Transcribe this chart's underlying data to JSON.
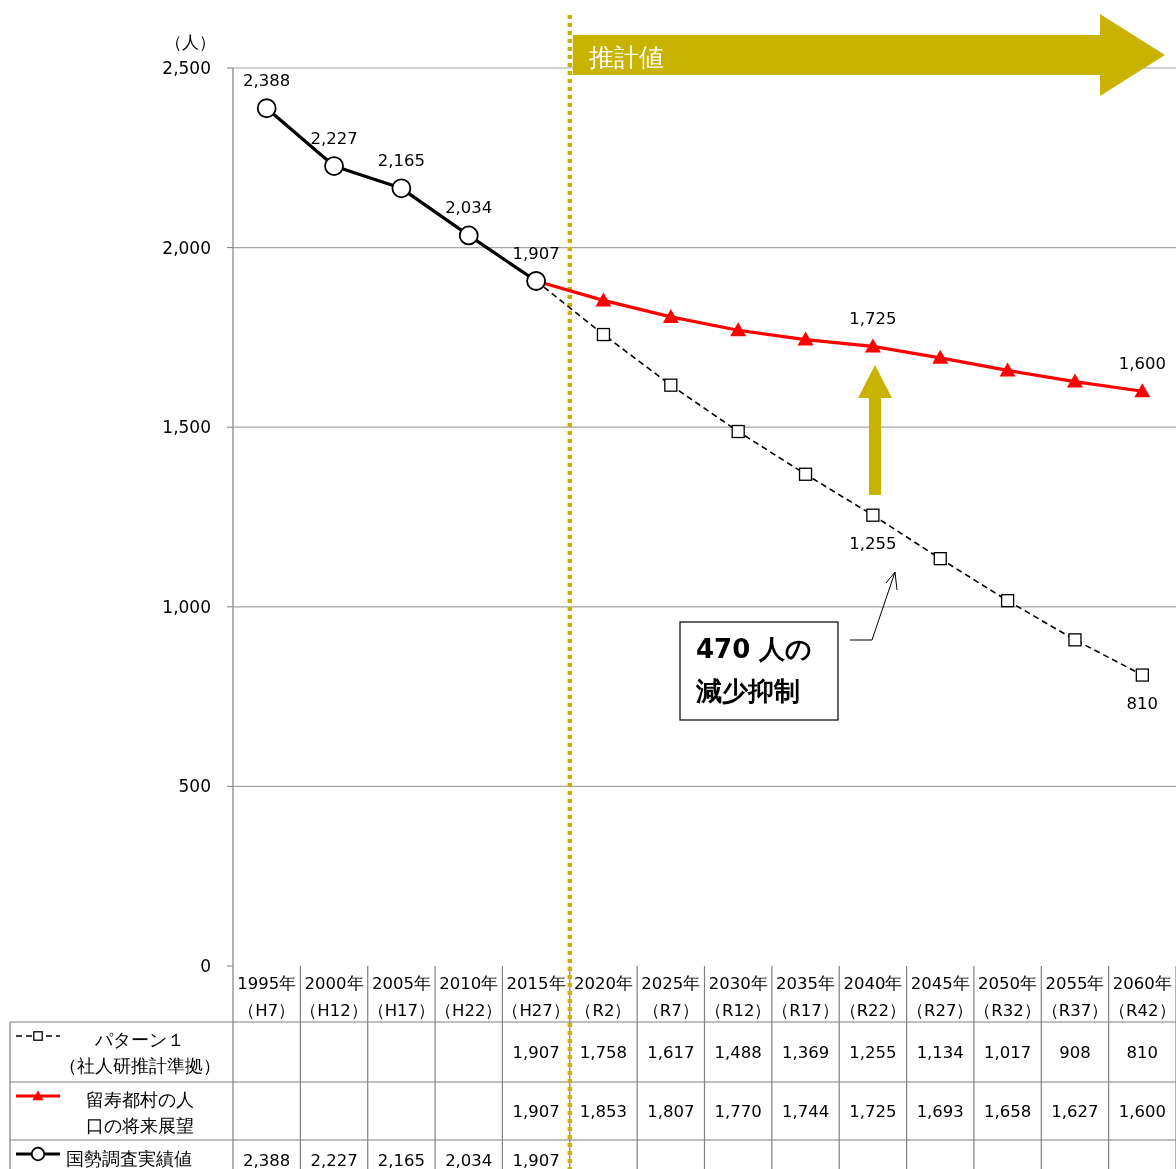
{
  "chart_data": {
    "type": "line",
    "ylabel": "（人）",
    "categories": [
      "1995年（H7）",
      "2000年（H12）",
      "2005年（H17）",
      "2010年（H22）",
      "2015年（H27）",
      "2020年（R2）",
      "2025年（R7）",
      "2030年（R12）",
      "2035年（R17）",
      "2040年（R22）",
      "2045年（R27）",
      "2050年（R32）",
      "2055年（R37）",
      "2060年（R42）"
    ],
    "series": [
      {
        "name": "パターン１（社人研推計準拠）",
        "color": "#000000",
        "marker": "square",
        "line_style": "dashed",
        "values": [
          null,
          null,
          null,
          null,
          1907,
          1758,
          1617,
          1488,
          1369,
          1255,
          1134,
          1017,
          908,
          810
        ],
        "value_labels": [
          null,
          null,
          null,
          null,
          "1,907",
          "1,758",
          "1,617",
          "1,488",
          "1,369",
          "1,255",
          "1,134",
          "1,017",
          "908",
          "810"
        ]
      },
      {
        "name": "留寿都村の人口の将来展望",
        "color": "#ff0000",
        "marker": "triangle",
        "line_style": "solid",
        "values": [
          null,
          null,
          null,
          null,
          1907,
          1853,
          1807,
          1770,
          1744,
          1725,
          1693,
          1658,
          1627,
          1600
        ],
        "value_labels": [
          null,
          null,
          null,
          null,
          "1,907",
          "1,853",
          "1,807",
          "1,770",
          "1,744",
          "1,725",
          "1,693",
          "1,658",
          "1,627",
          "1,600"
        ]
      },
      {
        "name": "国勢調査実績値",
        "color": "#000000",
        "marker": "circle",
        "line_style": "solid",
        "values": [
          2388,
          2227,
          2165,
          2034,
          1907,
          null,
          null,
          null,
          null,
          null,
          null,
          null,
          null,
          null
        ],
        "value_labels": [
          "2,388",
          "2,227",
          "2,165",
          "2,034",
          "1,907",
          null,
          null,
          null,
          null,
          null,
          null,
          null,
          null,
          null
        ]
      }
    ],
    "ylim": [
      0,
      2500
    ],
    "yticks": [
      0,
      500,
      {
        "value": 1000,
        "label": "1,000"
      },
      {
        "value": 1500,
        "label": "1,500"
      },
      {
        "value": 2000,
        "label": "2,000"
      },
      {
        "value": 2500,
        "label": "2,500"
      }
    ],
    "grid": "y",
    "legend": "bottom",
    "ref_lines": [
      {
        "axis": "x",
        "value": "2015年（H27）",
        "color": "#c8b400",
        "line_style": "dotted"
      }
    ],
    "annotations": [
      "推計値",
      "470 人の減少抑制",
      {
        "text": "2,388",
        "x": "1995年（H7）",
        "y": 2388
      },
      {
        "text": "2,227",
        "x": "2000年（H12）",
        "y": 2227
      },
      {
        "text": "2,165",
        "x": "2005年（H17）",
        "y": 2165
      },
      {
        "text": "2,034",
        "x": "2010年（H22）",
        "y": 2034
      },
      {
        "text": "1,907",
        "x": "2015年（H27）",
        "y": 1907
      },
      {
        "text": "1,725",
        "x": "2040年（R22）",
        "y": 1725
      },
      {
        "text": "1,255",
        "x": "2040年（R22）",
        "y": 1255
      },
      {
        "text": "1,600",
        "x": "2060年（R42）",
        "y": 1600
      },
      {
        "text": "810",
        "x": "2060年（R42）",
        "y": 810
      }
    ]
  }
}
